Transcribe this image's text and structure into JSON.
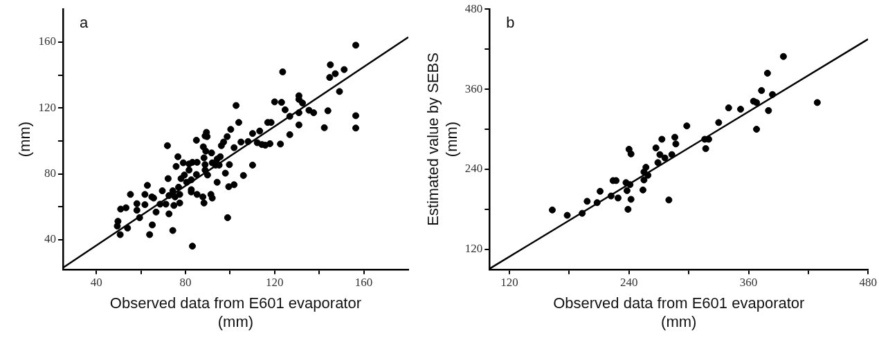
{
  "chart_data": [
    {
      "type": "scatter",
      "xlabel": "Observed data from E601 evaporator (mm)",
      "ylabel": "(mm)",
      "annotations": [
        "a"
      ],
      "xlim": [
        25,
        180
      ],
      "ylim": [
        22,
        180
      ],
      "xticks": [
        40,
        {
          "value": 60,
          "label": null
        },
        80,
        {
          "value": 100,
          "label": null
        },
        120,
        {
          "value": 140,
          "label": null
        },
        160
      ],
      "yticks": [
        40,
        {
          "value": 60,
          "label": null
        },
        80,
        {
          "value": 100,
          "label": null
        },
        120,
        {
          "value": 140,
          "label": null
        },
        160
      ],
      "legend": false,
      "series": [
        {
          "type": "scatter",
          "color": "#000000",
          "marker": "circle",
          "x": [
            156.4,
            145,
            147.2,
            151.2,
            144.7,
            149.1,
            123.6,
            143.9,
            156.4,
            156.4,
            142.3,
            130.9,
            130.9,
            132.5,
            120,
            123.1,
            124.7,
            126.8,
            130.9,
            130.9,
            135.4,
            137.5,
            126.8,
            122.6,
            116.9,
            118.4,
            115.8,
            117.9,
            113.3,
            110.1,
            112.2,
            114.3,
            108.1,
            104.9,
            102.7,
            103.9,
            100.3,
            98.7,
            97.1,
            96.1,
            101.8,
            110.1,
            99.7,
            97.9,
            106,
            101.8,
            99.4,
            98.9,
            89.4,
            88.8,
            89.7,
            84.9,
            88,
            89.1,
            91.7,
            94.2,
            95.6,
            93.5,
            95.1,
            92,
            88.3,
            88.8,
            88.8,
            89.9,
            94.2,
            85.2,
            83.1,
            81.6,
            79,
            76.6,
            75.8,
            81.6,
            79.5,
            78,
            84.9,
            82.6,
            80.5,
            72.2,
            76.9,
            74.3,
            72.6,
            75.3,
            77.4,
            69.6,
            68.6,
            71.2,
            72.6,
            74.8,
            77.4,
            82.6,
            82.6,
            85.2,
            87.8,
            88.3,
            91.4,
            92,
            71.9,
            62.9,
            61.8,
            64.9,
            65.7,
            55.3,
            58.2,
            61.8,
            58.2,
            59.4,
            66.8,
            50.9,
            53.3,
            49.7,
            49.4,
            50.7,
            54,
            65.1,
            63.9,
            74.3,
            83.1
          ],
          "values": [
            158.1,
            146.2,
            140.8,
            143.3,
            138.5,
            130,
            141.9,
            118.3,
            115.3,
            107.8,
            108,
            127.4,
            125.2,
            123,
            123.7,
            123.4,
            118.9,
            114.9,
            117.1,
            109.7,
            118.6,
            117.1,
            103.8,
            98.1,
            111.2,
            111.2,
            97.4,
            98.3,
            106,
            104.5,
            98.9,
            97.8,
            99.6,
            99.3,
            121.5,
            111.2,
            107,
            102.6,
            99.3,
            97.1,
            95.9,
            85.3,
            85.6,
            80.4,
            79,
            73.4,
            72.2,
            53.4,
            105.2,
            103,
            102.6,
            100.4,
            96.4,
            93.8,
            92.7,
            89,
            90.4,
            85.3,
            85.3,
            86.7,
            89.7,
            85.6,
            82.3,
            79.3,
            74.9,
            87,
            87,
            86,
            86.7,
            90.4,
            84.5,
            82.3,
            79.3,
            77.1,
            79.6,
            76.4,
            74.9,
            77.1,
            71.9,
            69.7,
            66.8,
            66,
            67.5,
            69.7,
            61.6,
            61.6,
            55.7,
            60.8,
            62.3,
            70.4,
            69,
            67.5,
            66,
            62.3,
            67.5,
            65.3,
            97.1,
            73,
            67.5,
            66,
            65.3,
            67.5,
            61.9,
            61.3,
            57.9,
            53.4,
            56.8,
            58.6,
            59.4,
            51.2,
            48.3,
            43.1,
            47.1,
            49,
            43.1,
            45.6,
            36.1
          ]
        },
        {
          "type": "line",
          "color": "#000000",
          "x": [
            25,
            180
          ],
          "values": [
            23,
            163
          ]
        }
      ]
    },
    {
      "type": "scatter",
      "xlabel": "Observed data from E601 evaporator (mm)",
      "ylabel": "Estimated value by SEBS (mm)",
      "annotations": [
        "b"
      ],
      "xlim": [
        100,
        480
      ],
      "ylim": [
        90,
        480
      ],
      "xticks": [
        120,
        {
          "value": 180,
          "label": null
        },
        240,
        {
          "value": 300,
          "label": null
        },
        360,
        {
          "value": 420,
          "label": null
        },
        480
      ],
      "yticks": [
        120,
        {
          "value": 180,
          "label": null
        },
        240,
        {
          "value": 300,
          "label": null
        },
        360,
        {
          "value": 420,
          "label": null
        },
        480
      ],
      "legend": false,
      "series": [
        {
          "type": "scatter",
          "color": "#000000",
          "marker": "circle",
          "x": [
            395,
            379,
            373,
            384,
            365,
            368,
            429,
            340,
            352,
            380,
            368,
            330,
            298,
            316,
            320,
            317,
            286,
            287,
            273,
            267,
            271,
            276,
            283,
            269,
            240,
            242,
            257,
            255,
            259,
            255,
            254,
            280,
            237,
            241,
            238,
            242,
            239,
            224,
            227,
            222,
            229,
            211,
            208,
            198,
            193,
            178,
            163
          ],
          "values": [
            409,
            384,
            358,
            352,
            342,
            340,
            340,
            332,
            330,
            328,
            300,
            310,
            305,
            285,
            285,
            271,
            288,
            278,
            285,
            272,
            262,
            257,
            262,
            250,
            270,
            263,
            243,
            236,
            231,
            224,
            209,
            194,
            220,
            217,
            208,
            195,
            180,
            223,
            223,
            200,
            197,
            207,
            190,
            192,
            174,
            171,
            179
          ]
        },
        {
          "type": "line",
          "color": "#000000",
          "x": [
            100,
            480
          ],
          "values": [
            91,
            435
          ]
        }
      ]
    }
  ]
}
